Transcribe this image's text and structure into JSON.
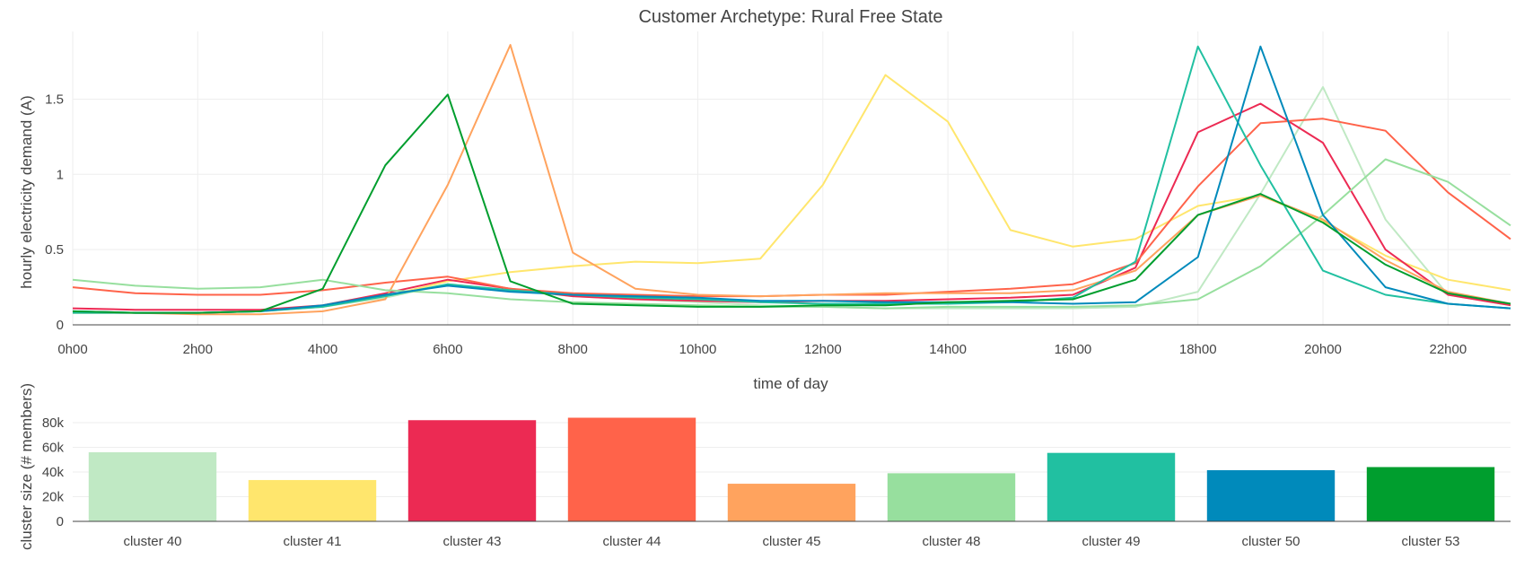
{
  "chart_data": [
    {
      "type": "line",
      "title": "Customer Archetype: Rural Free State",
      "xlabel": "time of day",
      "ylabel": "hourly electricity demand (A)",
      "x": [
        0,
        1,
        2,
        3,
        4,
        5,
        6,
        7,
        8,
        9,
        10,
        11,
        12,
        13,
        14,
        15,
        16,
        17,
        18,
        19,
        20,
        21,
        22,
        23
      ],
      "x_ticks": [
        {
          "x": 0,
          "label": "0h00"
        },
        {
          "x": 2,
          "label": "2h00"
        },
        {
          "x": 4,
          "label": "4h00"
        },
        {
          "x": 6,
          "label": "6h00"
        },
        {
          "x": 8,
          "label": "8h00"
        },
        {
          "x": 10,
          "label": "10h00"
        },
        {
          "x": 12,
          "label": "12h00"
        },
        {
          "x": 14,
          "label": "14h00"
        },
        {
          "x": 16,
          "label": "16h00"
        },
        {
          "x": 18,
          "label": "18h00"
        },
        {
          "x": 20,
          "label": "20h00"
        },
        {
          "x": 22,
          "label": "22h00"
        }
      ],
      "y_ticks": [
        {
          "y": 0,
          "label": "0"
        },
        {
          "y": 0.5,
          "label": "0.5"
        },
        {
          "y": 1,
          "label": "1"
        },
        {
          "y": 1.5,
          "label": "1.5"
        }
      ],
      "xlim": [
        0,
        23
      ],
      "ylim": [
        0,
        1.95
      ],
      "grid": true,
      "series": [
        {
          "color": "#c0e9c4",
          "values": [
            0.09,
            0.08,
            0.08,
            0.09,
            0.12,
            0.18,
            0.27,
            0.23,
            0.19,
            0.17,
            0.15,
            0.13,
            0.12,
            0.11,
            0.11,
            0.11,
            0.11,
            0.12,
            0.22,
            0.87,
            1.58,
            0.7,
            0.2,
            0.13
          ]
        },
        {
          "color": "#ffe66d",
          "values": [
            0.08,
            0.08,
            0.08,
            0.09,
            0.12,
            0.19,
            0.29,
            0.35,
            0.39,
            0.42,
            0.41,
            0.44,
            0.93,
            1.66,
            1.35,
            0.63,
            0.52,
            0.57,
            0.79,
            0.86,
            0.69,
            0.46,
            0.3,
            0.23
          ]
        },
        {
          "color": "#ec2a53",
          "values": [
            0.11,
            0.1,
            0.1,
            0.1,
            0.13,
            0.21,
            0.3,
            0.24,
            0.19,
            0.17,
            0.16,
            0.15,
            0.16,
            0.16,
            0.17,
            0.18,
            0.2,
            0.38,
            1.28,
            1.47,
            1.21,
            0.5,
            0.2,
            0.13
          ]
        },
        {
          "color": "#ff634a",
          "values": [
            0.25,
            0.21,
            0.2,
            0.2,
            0.23,
            0.28,
            0.32,
            0.24,
            0.21,
            0.2,
            0.19,
            0.19,
            0.2,
            0.2,
            0.22,
            0.24,
            0.27,
            0.41,
            0.92,
            1.34,
            1.37,
            1.29,
            0.88,
            0.57
          ]
        },
        {
          "color": "#ffa35e",
          "values": [
            0.08,
            0.08,
            0.07,
            0.07,
            0.09,
            0.17,
            0.93,
            1.86,
            0.48,
            0.24,
            0.2,
            0.19,
            0.2,
            0.21,
            0.21,
            0.21,
            0.23,
            0.36,
            0.73,
            0.86,
            0.7,
            0.43,
            0.22,
            0.14
          ]
        },
        {
          "color": "#97df9e",
          "values": [
            0.3,
            0.26,
            0.24,
            0.25,
            0.3,
            0.23,
            0.21,
            0.17,
            0.15,
            0.14,
            0.13,
            0.12,
            0.12,
            0.11,
            0.12,
            0.12,
            0.12,
            0.13,
            0.17,
            0.39,
            0.73,
            1.1,
            0.95,
            0.66
          ]
        },
        {
          "color": "#21c0a1",
          "values": [
            0.08,
            0.08,
            0.08,
            0.09,
            0.12,
            0.19,
            0.27,
            0.23,
            0.2,
            0.18,
            0.17,
            0.15,
            0.14,
            0.14,
            0.14,
            0.15,
            0.18,
            0.42,
            1.85,
            1.06,
            0.36,
            0.2,
            0.14,
            0.11
          ]
        },
        {
          "color": "#008abb",
          "values": [
            0.09,
            0.08,
            0.08,
            0.09,
            0.13,
            0.2,
            0.26,
            0.22,
            0.2,
            0.19,
            0.18,
            0.16,
            0.16,
            0.15,
            0.15,
            0.15,
            0.14,
            0.15,
            0.45,
            1.85,
            0.73,
            0.25,
            0.14,
            0.11
          ]
        },
        {
          "color": "#009e2e",
          "values": [
            0.09,
            0.08,
            0.08,
            0.09,
            0.24,
            1.06,
            1.53,
            0.29,
            0.14,
            0.13,
            0.12,
            0.12,
            0.13,
            0.13,
            0.15,
            0.16,
            0.17,
            0.3,
            0.73,
            0.87,
            0.68,
            0.4,
            0.21,
            0.14
          ]
        }
      ]
    },
    {
      "type": "bar",
      "ylabel": "cluster size (# members)",
      "categories": [
        "cluster 40",
        "cluster 41",
        "cluster 43",
        "cluster 44",
        "cluster 45",
        "cluster 48",
        "cluster 49",
        "cluster 50",
        "cluster 53"
      ],
      "values": [
        56000,
        33500,
        82000,
        84000,
        30500,
        39000,
        55500,
        41500,
        44000
      ],
      "colors": [
        "#c0e9c4",
        "#ffe66d",
        "#ec2a53",
        "#ff634a",
        "#ffa35e",
        "#97df9e",
        "#21c0a1",
        "#008abb",
        "#009e2e"
      ],
      "y_ticks": [
        {
          "y": 0,
          "label": "0"
        },
        {
          "y": 20000,
          "label": "20k"
        },
        {
          "y": 40000,
          "label": "40k"
        },
        {
          "y": 60000,
          "label": "60k"
        },
        {
          "y": 80000,
          "label": "80k"
        }
      ],
      "ylim": [
        0,
        88000
      ],
      "grid": true
    }
  ]
}
